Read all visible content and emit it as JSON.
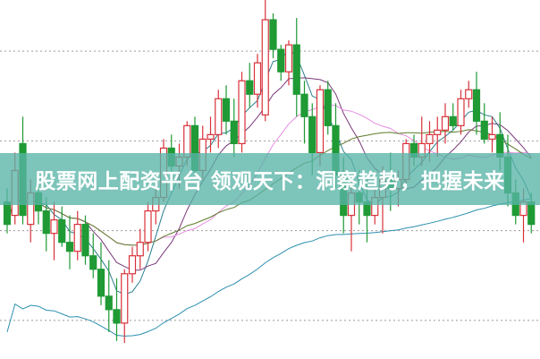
{
  "banner": {
    "text": "股票网上配资平台 领观天下：洞察趋势，把握未来"
  },
  "chart_data": {
    "type": "candlestick",
    "ylim": [
      0,
      400
    ],
    "grid": "dotted-horizontal",
    "gridlines": [
      43,
      143,
      243,
      343
    ],
    "colors": {
      "up": "#d9323a",
      "down": "#1f9a35",
      "grid": "#999999",
      "ma": [
        "#2a7f8f",
        "#7a3a7a",
        "#e58ee0",
        "#5f7a2a",
        "#2b8fae"
      ]
    },
    "moving_averages": [
      5,
      10,
      20,
      30,
      60
    ],
    "candles_ohlc": [
      [
        175,
        190,
        140,
        150
      ],
      [
        160,
        230,
        150,
        210
      ],
      [
        240,
        270,
        150,
        160
      ],
      [
        150,
        200,
        130,
        185
      ],
      [
        185,
        195,
        150,
        165
      ],
      [
        165,
        180,
        120,
        140
      ],
      [
        140,
        175,
        110,
        155
      ],
      [
        155,
        170,
        125,
        130
      ],
      [
        130,
        160,
        100,
        120
      ],
      [
        120,
        165,
        110,
        150
      ],
      [
        150,
        160,
        105,
        115
      ],
      [
        115,
        140,
        90,
        100
      ],
      [
        100,
        130,
        60,
        70
      ],
      [
        70,
        110,
        30,
        55
      ],
      [
        55,
        90,
        20,
        40
      ],
      [
        40,
        100,
        18,
        95
      ],
      [
        95,
        125,
        85,
        115
      ],
      [
        115,
        145,
        100,
        130
      ],
      [
        130,
        175,
        120,
        165
      ],
      [
        165,
        190,
        150,
        180
      ],
      [
        180,
        245,
        175,
        235
      ],
      [
        235,
        250,
        200,
        215
      ],
      [
        215,
        240,
        190,
        225
      ],
      [
        225,
        265,
        215,
        260
      ],
      [
        260,
        270,
        205,
        210
      ],
      [
        210,
        260,
        200,
        245
      ],
      [
        245,
        270,
        230,
        250
      ],
      [
        250,
        300,
        235,
        290
      ],
      [
        290,
        305,
        250,
        265
      ],
      [
        265,
        290,
        225,
        240
      ],
      [
        240,
        320,
        230,
        310
      ],
      [
        310,
        330,
        280,
        295
      ],
      [
        295,
        340,
        280,
        330
      ],
      [
        272,
        400,
        265,
        378
      ],
      [
        378,
        385,
        335,
        345
      ],
      [
        345,
        350,
        310,
        320
      ],
      [
        320,
        355,
        305,
        350
      ],
      [
        350,
        380,
        270,
        295
      ],
      [
        295,
        310,
        240,
        270
      ],
      [
        270,
        285,
        205,
        230
      ],
      [
        230,
        305,
        215,
        300
      ],
      [
        300,
        310,
        250,
        260
      ],
      [
        260,
        285,
        190,
        205
      ],
      [
        205,
        225,
        140,
        160
      ],
      [
        160,
        200,
        120,
        185
      ],
      [
        185,
        210,
        150,
        175
      ],
      [
        175,
        200,
        130,
        160
      ],
      [
        160,
        190,
        150,
        180
      ],
      [
        180,
        215,
        140,
        200
      ],
      [
        200,
        230,
        165,
        190
      ],
      [
        190,
        210,
        170,
        200
      ],
      [
        200,
        245,
        190,
        240
      ],
      [
        240,
        250,
        215,
        225
      ],
      [
        225,
        270,
        215,
        240
      ],
      [
        240,
        265,
        220,
        250
      ],
      [
        250,
        270,
        225,
        255
      ],
      [
        255,
        285,
        240,
        270
      ],
      [
        270,
        285,
        255,
        260
      ],
      [
        260,
        300,
        250,
        290
      ],
      [
        290,
        310,
        280,
        300
      ],
      [
        300,
        320,
        250,
        265
      ],
      [
        265,
        285,
        240,
        245
      ],
      [
        245,
        270,
        230,
        250
      ],
      [
        250,
        275,
        210,
        225
      ],
      [
        225,
        250,
        170,
        185
      ],
      [
        185,
        200,
        150,
        160
      ],
      [
        160,
        190,
        130,
        175
      ],
      [
        175,
        185,
        140,
        150
      ]
    ]
  }
}
